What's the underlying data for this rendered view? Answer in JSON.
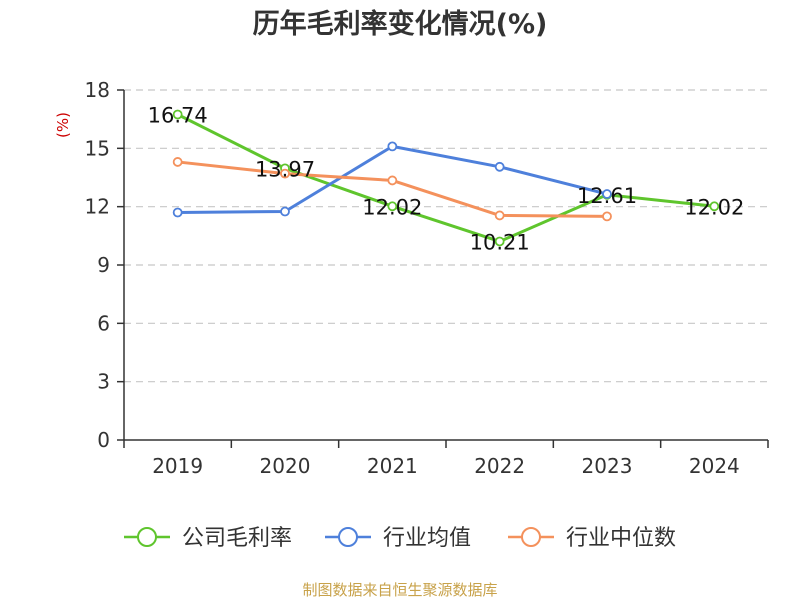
{
  "chart_data": {
    "type": "line",
    "title": "历年毛利率变化情况(%)",
    "ylabel": "(%)",
    "xlabel": "",
    "categories": [
      "2019",
      "2020",
      "2021",
      "2022",
      "2023",
      "2024"
    ],
    "yticks": [
      0,
      3,
      6,
      9,
      12,
      15,
      18
    ],
    "ylim": [
      0,
      18
    ],
    "grid": true,
    "legend_position": "bottom",
    "series": [
      {
        "name": "公司毛利率",
        "color": "#5fc52d",
        "values": [
          16.74,
          13.97,
          12.02,
          10.21,
          12.61,
          12.02
        ],
        "labels": [
          "16.74",
          "13.97",
          "12.02",
          "10.21",
          "12.61",
          "12.02"
        ]
      },
      {
        "name": "行业均值",
        "color": "#4e80db",
        "values": [
          11.7,
          11.75,
          15.1,
          14.05,
          12.65,
          null
        ]
      },
      {
        "name": "行业中位数",
        "color": "#f4915c",
        "values": [
          14.3,
          13.7,
          13.35,
          11.55,
          11.5,
          null
        ]
      }
    ]
  },
  "footer": {
    "source": "制图数据来自恒生聚源数据库"
  }
}
